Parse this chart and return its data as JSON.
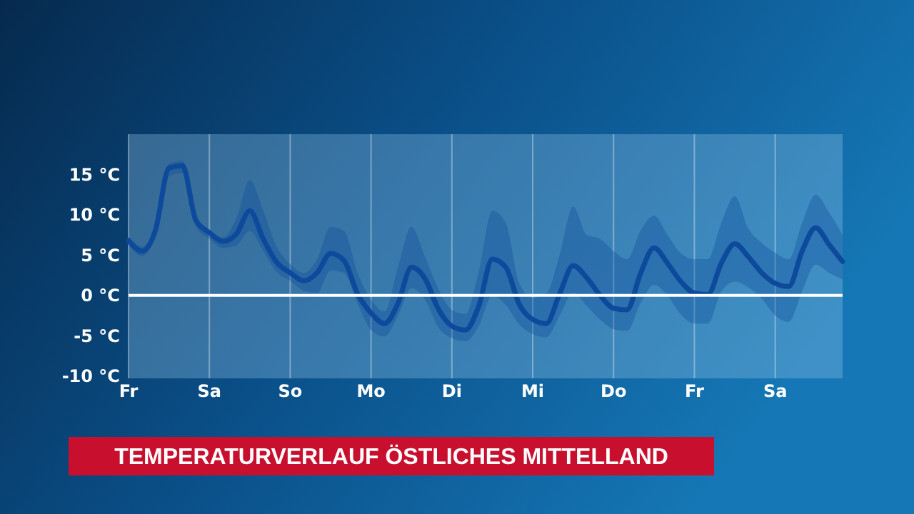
{
  "chart_data": {
    "type": "line",
    "title": "TEMPERATURVERLAUF ÖSTLICHES MITTELLAND",
    "categories": [
      "Fr",
      null,
      null,
      null,
      null,
      null,
      "Sa",
      null,
      null,
      null,
      null,
      null,
      "So",
      null,
      null,
      null,
      null,
      null,
      "Mo",
      null,
      null,
      null,
      null,
      null,
      "Di",
      null,
      null,
      null,
      null,
      null,
      "Mi",
      null,
      null,
      null,
      null,
      null,
      "Do",
      null,
      null,
      null,
      null,
      null,
      "Fr",
      null,
      null,
      null,
      null,
      null,
      "Sa",
      null,
      null,
      null,
      null,
      null
    ],
    "ylim": [
      -10.3,
      20
    ],
    "yticks": [
      {
        "value": -10,
        "label": "-10 °C"
      },
      {
        "value": -5,
        "label": "-5 °C"
      },
      {
        "value": 0,
        "label": "0 °C"
      },
      {
        "value": 5,
        "label": "5 °C"
      },
      {
        "value": 10,
        "label": "10 °C"
      },
      {
        "value": 15,
        "label": "15 °C"
      }
    ],
    "grid": "x",
    "line_style": "solid",
    "ref_lines": [
      {
        "axis": "y",
        "value": 0,
        "color": "#ffffff"
      }
    ],
    "series": [
      {
        "color": "#0d4a9c",
        "values": [
          6.8,
          5.5,
          8.1,
          15.8,
          16.1,
          9.3,
          7.8,
          6.7,
          7.6,
          10.5,
          7.0,
          4.1,
          2.8,
          1.8,
          2.8,
          5.2,
          4.3,
          0.2,
          -2.2,
          -3.5,
          -1.0,
          3.5,
          2.1,
          -1.7,
          -3.8,
          -4.3,
          -1.3,
          4.5,
          3.5,
          -1.1,
          -3.0,
          -3.5,
          0.2,
          3.7,
          2.2,
          0,
          -1.6,
          -1.8,
          2.7,
          5.9,
          4.0,
          1.7,
          0.3,
          0.1,
          4.0,
          6.4,
          4.8,
          2.8,
          1.5,
          1.1,
          5.5,
          8.4,
          6.3,
          4.2
        ],
        "lower": [
          6.3,
          4.9,
          7.3,
          14.8,
          15.2,
          8.5,
          7,
          5.9,
          6.2,
          8,
          5.5,
          2.9,
          1.8,
          0.6,
          0.3,
          3.1,
          2.8,
          -1.0,
          -4.3,
          -5.1,
          -2.5,
          0.9,
          -0.5,
          -4,
          -5.3,
          -5.7,
          -3.8,
          0,
          -1.2,
          -3.6,
          -4.8,
          -5.2,
          -2.5,
          0.3,
          -1.3,
          -3,
          -4.2,
          -4.4,
          -1,
          1.3,
          0,
          -2.4,
          -3.5,
          -3.5,
          0.5,
          1.7,
          1,
          -0.4,
          -2.5,
          -3.3,
          0.5,
          3.8,
          2.8,
          2
        ],
        "upper": [
          7.3,
          6,
          8.8,
          16.3,
          16.7,
          10,
          8.1,
          7.2,
          9.5,
          14.3,
          10.5,
          6.0,
          3.9,
          2.8,
          4.5,
          8.5,
          8,
          2.8,
          -0.5,
          -2,
          3.5,
          8.5,
          4.8,
          0.8,
          -1.8,
          -2.3,
          3,
          10.5,
          9,
          1.5,
          -0.3,
          0.2,
          5,
          11,
          7.5,
          7,
          5.5,
          4.5,
          8,
          9.9,
          7.5,
          5.2,
          4.5,
          4.5,
          9,
          12.3,
          8.3,
          6.5,
          5.3,
          4.5,
          9,
          12.5,
          10.3,
          7.5
        ]
      }
    ]
  }
}
